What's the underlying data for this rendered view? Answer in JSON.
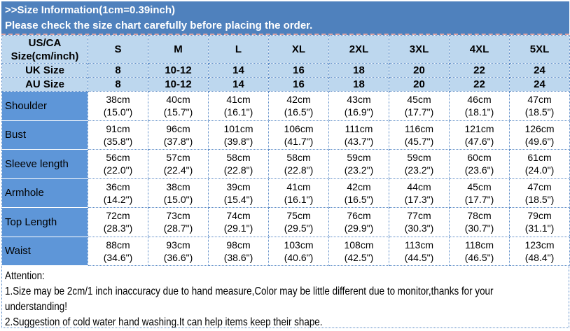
{
  "banner": {
    "line1": ">>Size Information(1cm=0.39inch)",
    "line2": "Please check the size chart carefully before placing the order."
  },
  "size_table": {
    "corner_line1": "US/CA",
    "corner_line2": "Size(cm/inch)",
    "columns": [
      "S",
      "M",
      "L",
      "XL",
      "2XL",
      "3XL",
      "4XL",
      "5XL"
    ],
    "region_rows": [
      {
        "label": "UK Size",
        "values": [
          "8",
          "10-12",
          "14",
          "16",
          "18",
          "20",
          "22",
          "24"
        ]
      },
      {
        "label": "AU Size",
        "values": [
          "8",
          "10-12",
          "14",
          "16",
          "18",
          "20",
          "22",
          "24"
        ]
      }
    ],
    "measurement_rows": [
      {
        "label": "Shoulder",
        "cells": [
          [
            "38cm",
            "(15.0\")"
          ],
          [
            "40cm",
            "(15.7\")"
          ],
          [
            "41cm",
            "(16.1\")"
          ],
          [
            "42cm",
            "(16.5\")"
          ],
          [
            "43cm",
            "(16.9\")"
          ],
          [
            "45cm",
            "(17.7\")"
          ],
          [
            "46cm",
            "(18.1\")"
          ],
          [
            "47cm",
            "(18.5\")"
          ]
        ]
      },
      {
        "label": "Bust",
        "cells": [
          [
            "91cm",
            "(35.8\")"
          ],
          [
            "96cm",
            "(37.8\")"
          ],
          [
            "101cm",
            "(39.8\")"
          ],
          [
            "106cm",
            "(41.7\")"
          ],
          [
            "111cm",
            "(43.7\")"
          ],
          [
            "116cm",
            "(45.7\")"
          ],
          [
            "121cm",
            "(47.6\")"
          ],
          [
            "126cm",
            "(49.6\")"
          ]
        ]
      },
      {
        "label": "Sleeve length",
        "cells": [
          [
            "56cm",
            "(22.0\")"
          ],
          [
            "57cm",
            "(22.4\")"
          ],
          [
            "58cm",
            "(22.8\")"
          ],
          [
            "58cm",
            "(22.8\")"
          ],
          [
            "59cm",
            "(23.2\")"
          ],
          [
            "59cm",
            "(23.2\")"
          ],
          [
            "60cm",
            "(23.6\")"
          ],
          [
            "61cm",
            "(24.0\")"
          ]
        ]
      },
      {
        "label": "Armhole",
        "cells": [
          [
            "36cm",
            "(14.2\")"
          ],
          [
            "38cm",
            "(15.0\")"
          ],
          [
            "39cm",
            "(15.4\")"
          ],
          [
            "41cm",
            "(16.1\")"
          ],
          [
            "42cm",
            "(16.5\")"
          ],
          [
            "44cm",
            "(17.3\")"
          ],
          [
            "45cm",
            "(17.7\")"
          ],
          [
            "47cm",
            "(18.5\")"
          ]
        ]
      },
      {
        "label": "Top Length",
        "cells": [
          [
            "72cm",
            "(28.3\")"
          ],
          [
            "73cm",
            "(28.7\")"
          ],
          [
            "74cm",
            "(29.1\")"
          ],
          [
            "75cm",
            "(29.5\")"
          ],
          [
            "76cm",
            "(29.9\")"
          ],
          [
            "77cm",
            "(30.3\")"
          ],
          [
            "78cm",
            "(30.7\")"
          ],
          [
            "79cm",
            "(31.1\")"
          ]
        ]
      },
      {
        "label": "Waist",
        "cells": [
          [
            "88cm",
            "(34.6\")"
          ],
          [
            "93cm",
            "(36.6\")"
          ],
          [
            "98cm",
            "(38.6\")"
          ],
          [
            "103cm",
            "(40.6\")"
          ],
          [
            "108cm",
            "(42.5\")"
          ],
          [
            "113cm",
            "(44.5\")"
          ],
          [
            "118cm",
            "(46.5\")"
          ],
          [
            "123cm",
            "(48.4\")"
          ]
        ]
      }
    ]
  },
  "attention": {
    "lines": [
      "Attention:",
      "1.Size may be 2cm/1 inch inaccuracy due to hand measure,Color may be little different due to monitor,thanks for your",
      "understanding!",
      "2.Suggestion of cold water hand washing.It can help items keep their shape."
    ]
  },
  "colors": {
    "banner_bg": "#4f81bd",
    "header_bg": "#bdd7ee",
    "label_bg": "#5e96d8",
    "grid": "#5a8ac6",
    "banner_text": "#ffffff",
    "text": "#000000"
  }
}
